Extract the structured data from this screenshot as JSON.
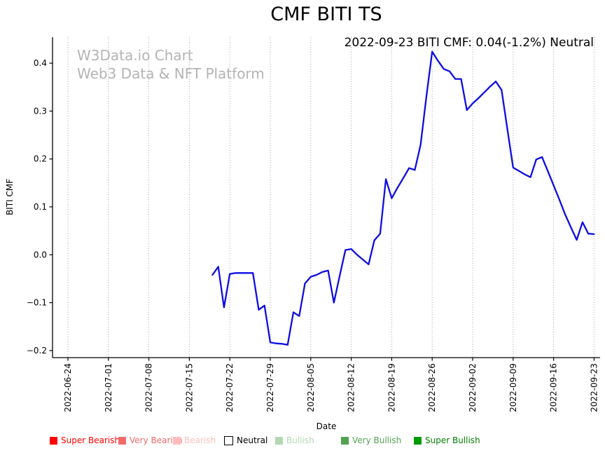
{
  "figure": {
    "title": "CMF BITI TS",
    "annotation": "2022-09-23 BITI CMF: 0.04(-1.2%) Neutral"
  },
  "watermark": {
    "line1": "W3Data.io Chart",
    "line2": "Web3 Data & NFT Platform"
  },
  "axes": {
    "y_label": "BITI CMF",
    "x_label": "Date"
  },
  "legend": {
    "items": [
      {
        "label": "Super Bearish",
        "swatch_color": "#ff0000",
        "text_color": "#ff0000",
        "swatch_border": "none"
      },
      {
        "label": "Very Bearish",
        "swatch_color": "#f26b6b",
        "text_color": "#f26b6b",
        "swatch_border": "none"
      },
      {
        "label": "Bearish",
        "swatch_color": "#ffbdbd",
        "text_color": "#ffbdbd",
        "swatch_border": "none"
      },
      {
        "label": "Neutral",
        "swatch_color": "#ffffff",
        "text_color": "#000000",
        "swatch_border": "#000000"
      },
      {
        "label": "Bullish",
        "swatch_color": "#b2d8b2",
        "text_color": "#b2d8b2",
        "swatch_border": "none"
      },
      {
        "label": "Very Bullish",
        "swatch_color": "#51a351",
        "text_color": "#51a351",
        "swatch_border": "none"
      },
      {
        "label": "Super Bullish",
        "swatch_color": "#009b00",
        "text_color": "#008000",
        "swatch_border": "none"
      }
    ]
  },
  "chart_data": {
    "type": "line",
    "title": "CMF BITI TS",
    "xlabel": "Date",
    "ylabel": "BITI CMF",
    "grid": "vertical dotted gridlines at weekly date ticks",
    "legend_position": "bottom",
    "line_color": "#0d0de3",
    "ylim": [
      -0.215,
      0.455
    ],
    "xlim": [
      "2022-06-24",
      "2022-09-23"
    ],
    "y_tick_values": [
      0.4,
      0.3,
      0.2,
      0.1,
      0.0,
      -0.1,
      -0.2
    ],
    "y_tick_labels": [
      "0.4",
      "0.3",
      "0.2",
      "0.1",
      "0.0",
      "−0.1",
      "−0.2"
    ],
    "x_tick_labels": [
      "2022-06-24",
      "2022-07-01",
      "2022-07-08",
      "2022-07-15",
      "2022-07-22",
      "2022-07-29",
      "2022-08-05",
      "2022-08-12",
      "2022-08-19",
      "2022-08-26",
      "2022-09-02",
      "2022-09-09",
      "2022-09-16",
      "2022-09-23"
    ],
    "series": [
      {
        "name": "BITI CMF",
        "color": "#0d0de3",
        "x": [
          "2022-07-19",
          "2022-07-20",
          "2022-07-21",
          "2022-07-22",
          "2022-07-23",
          "2022-07-24",
          "2022-07-25",
          "2022-07-26",
          "2022-07-27",
          "2022-07-28",
          "2022-07-29",
          "2022-07-30",
          "2022-07-31",
          "2022-08-01",
          "2022-08-02",
          "2022-08-03",
          "2022-08-04",
          "2022-08-05",
          "2022-08-06",
          "2022-08-07",
          "2022-08-08",
          "2022-08-09",
          "2022-08-10",
          "2022-08-11",
          "2022-08-12",
          "2022-08-13",
          "2022-08-14",
          "2022-08-15",
          "2022-08-16",
          "2022-08-17",
          "2022-08-18",
          "2022-08-19",
          "2022-08-20",
          "2022-08-21",
          "2022-08-22",
          "2022-08-23",
          "2022-08-24",
          "2022-08-25",
          "2022-08-26",
          "2022-08-27",
          "2022-08-28",
          "2022-08-29",
          "2022-08-30",
          "2022-08-31",
          "2022-09-01",
          "2022-09-02",
          "2022-09-03",
          "2022-09-04",
          "2022-09-05",
          "2022-09-06",
          "2022-09-07",
          "2022-09-08",
          "2022-09-09",
          "2022-09-10",
          "2022-09-11",
          "2022-09-12",
          "2022-09-13",
          "2022-09-14",
          "2022-09-15",
          "2022-09-16",
          "2022-09-17",
          "2022-09-18",
          "2022-09-19",
          "2022-09-20",
          "2022-09-21",
          "2022-09-22",
          "2022-09-23"
        ],
        "values": [
          -0.042,
          -0.025,
          -0.11,
          -0.04,
          -0.038,
          -0.038,
          -0.038,
          -0.038,
          -0.115,
          -0.106,
          -0.183,
          -0.185,
          -0.186,
          -0.188,
          -0.12,
          -0.128,
          -0.06,
          -0.046,
          -0.042,
          -0.036,
          -0.033,
          -0.1,
          -0.044,
          0.01,
          0.012,
          0.0,
          -0.01,
          -0.02,
          0.03,
          0.044,
          0.158,
          0.118,
          0.14,
          0.16,
          0.181,
          0.177,
          0.23,
          0.33,
          0.424,
          0.405,
          0.388,
          0.383,
          0.367,
          0.367,
          0.302,
          0.316,
          0.327,
          0.339,
          0.351,
          0.362,
          0.344,
          0.263,
          0.182,
          0.175,
          0.168,
          0.162,
          0.199,
          0.204,
          0.175,
          0.145,
          0.115,
          0.084,
          0.057,
          0.031,
          0.068,
          0.044,
          0.043
        ]
      }
    ]
  }
}
